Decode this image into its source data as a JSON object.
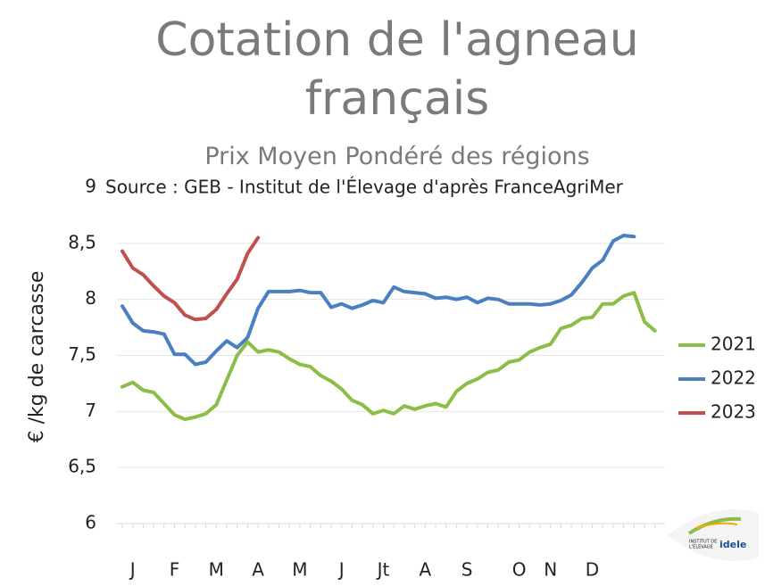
{
  "chart_data": {
    "type": "line",
    "title": "Cotation de l'agneau français",
    "subtitle": "Prix Moyen Pondéré des régions",
    "source": "Source : GEB - Institut de l'Élevage d'après FranceAgriMer",
    "y_label": "€ /kg de carcasse",
    "categories": [
      null,
      "J",
      null,
      null,
      null,
      "F",
      null,
      null,
      null,
      "M",
      null,
      null,
      null,
      "A",
      null,
      null,
      null,
      "M",
      null,
      null,
      null,
      "J",
      null,
      null,
      null,
      "Jt",
      null,
      null,
      null,
      "A",
      null,
      null,
      null,
      "S",
      null,
      null,
      null,
      null,
      "O",
      null,
      null,
      "N",
      null,
      null,
      null,
      "D",
      null,
      null,
      null,
      null,
      null,
      null
    ],
    "series": [
      {
        "name": "2021",
        "color": "#8cbd46",
        "values": [
          7.22,
          7.26,
          7.19,
          7.17,
          7.07,
          6.97,
          6.93,
          6.95,
          6.98,
          7.06,
          7.28,
          7.5,
          7.62,
          7.53,
          7.55,
          7.53,
          7.47,
          7.42,
          7.4,
          7.32,
          7.27,
          7.2,
          7.1,
          7.06,
          6.98,
          7.01,
          6.98,
          7.05,
          7.02,
          7.05,
          7.07,
          7.04,
          7.18,
          7.25,
          7.29,
          7.35,
          7.37,
          7.44,
          7.46,
          7.53,
          7.57,
          7.6,
          7.74,
          7.77,
          7.83,
          7.84,
          7.96,
          7.96,
          8.03,
          8.06,
          7.8,
          7.72
        ]
      },
      {
        "name": "2022",
        "color": "#4a7fc1",
        "values": [
          7.94,
          7.79,
          7.72,
          7.71,
          7.69,
          7.51,
          7.51,
          7.42,
          7.44,
          7.54,
          7.63,
          7.57,
          7.66,
          7.92,
          8.07,
          8.07,
          8.07,
          8.08,
          8.06,
          8.06,
          7.93,
          7.96,
          7.92,
          7.95,
          7.99,
          7.97,
          8.11,
          8.07,
          8.06,
          8.05,
          8.01,
          8.02,
          8.0,
          8.02,
          7.97,
          8.01,
          8.0,
          7.96,
          7.96,
          7.96,
          7.95,
          7.96,
          7.99,
          8.04,
          8.15,
          8.28,
          8.35,
          8.52,
          8.57,
          8.56,
          null,
          null
        ]
      },
      {
        "name": "2023",
        "color": "#c0504d",
        "values": [
          8.43,
          8.28,
          8.22,
          8.12,
          8.03,
          7.97,
          7.86,
          7.82,
          7.83,
          7.91,
          8.05,
          8.18,
          8.41,
          8.55,
          null,
          null,
          null,
          null,
          null,
          null,
          null,
          null,
          null,
          null,
          null,
          null,
          null,
          null,
          null,
          null,
          null,
          null,
          null,
          null,
          null,
          null,
          null,
          null,
          null,
          null,
          null,
          null,
          null,
          null,
          null,
          null,
          null,
          null,
          null,
          null,
          null,
          null
        ]
      }
    ],
    "ylim": [
      6,
      9
    ],
    "yticks": [
      6,
      {
        "value": 6.5,
        "label": "6,5"
      },
      7,
      {
        "value": 7.5,
        "label": "7,5"
      },
      8,
      {
        "value": 8.5,
        "label": "8,5"
      },
      9
    ],
    "grid": true,
    "legend": "right"
  },
  "logo": {
    "line1": "INSTITUT DE",
    "line2": "L'ÉLEVAGE",
    "brand": "idele"
  }
}
